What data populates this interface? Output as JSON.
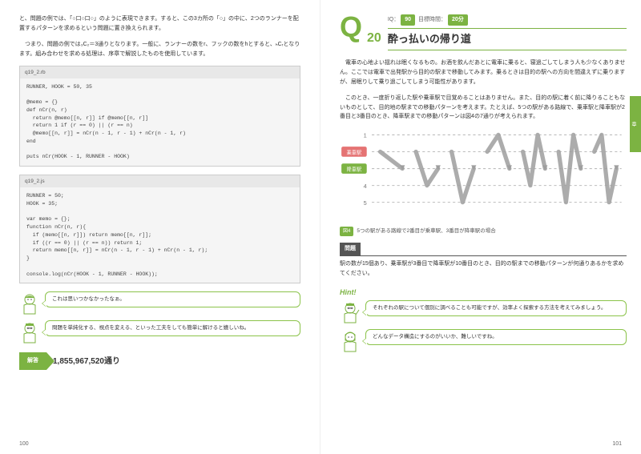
{
  "left": {
    "para1": "と、問題の例では、「○口○口○」のように表現できます。すると、この3カ所の「○」の中に、2つのランナーを配置するパターンを求めるという問題に置き換えられます。",
    "para2": "　つまり、問題の例では₃C₂＝3通りとなります。一般に、ランナーの数をr、フックの数をhとすると、ₕCᵣとなります。組み合わせを求める処理は、序章で解説したものを使用しています。",
    "code1_name": "q19_2.rb",
    "code1": "RUNNER, HOOK = 50, 35\n\n@memo = {}\ndef nCr(n, r)\n  return @memo[[n, r]] if @memo[[n, r]]\n  return 1 if (r == 0) || (r == n)\n  @memo[[n, r]] = nCr(n - 1, r - 1) + nCr(n - 1, r)\nend\n\nputs nCr(HOOK - 1, RUNNER - HOOK)",
    "code2_name": "q19_2.js",
    "code2": "RUNNER = 50;\nHOOK = 35;\n\nvar memo = {};\nfunction nCr(n, r){\n  if (memo[[n, r]]) return memo[[n, r]];\n  if ((r == 0) || (r == n)) return 1;\n  return memo[[n, r]] = nCr(n - 1, r - 1) + nCr(n - 1, r);\n}\n\nconsole.log(nCr(HOOK - 1, RUNNER - HOOK));",
    "bubble1": "これは思いつかなかったなぁ。",
    "bubble2": "問題を単純化する、視点を変える、といった工夫をしても簡単に解けると嬉しいね。",
    "answer_label": "解答",
    "answer": "1,855,967,520通り",
    "pagenum": "100"
  },
  "right": {
    "q_letter": "Q",
    "q_num": "20",
    "iq_label": "IQ：",
    "iq_val": "90",
    "time_label": "目標時間：",
    "time_val": "20分",
    "title": "酔っ払いの帰り道",
    "para1": "　電車の心地よい揺れは眠くなるもの。お酒を飲んだあとに電車に乗ると、寝過ごしてしまう人も少なくありません。ここでは電車で出発駅から目的の駅まで移動してみます。乗るときは目的の駅への方向を間違えずに乗りますが、居眠りして乗り過ごしてしまう可能性があります。",
    "para2": "　このとき、一度折り返した駅や乗車駅で目覚めることはありません。また、目的の駅に着く前に降りることもないものとして、目的地の駅までの移動パターンを考えます。たとえば、5つの駅がある路線で、乗車駅と降車駅が2番目と3番目のとき、降車駅までの移動パターンは図4の7通りが考えられます。",
    "fig_badge": "図4",
    "fig_caption": "5つの駅がある路線で2番目が乗車駅、3番目が降車駅の場合",
    "station_board": "乗車駅",
    "station_alight": "降車駅",
    "problem_label": "問題",
    "problem_body": "駅の数が15個あり、乗車駅が3番目で降車駅が10番目のとき、目的の駅までの移動パターンが何通りあるかを求めてください。",
    "hint_label": "Hint!",
    "hint1": "それぞれの駅について個別に調べることも可能ですが、効率よく探索する方法を考えてみましょう。",
    "hint2": "どんなデータ構造にするのがいいか、難しいですね。",
    "pagenum": "101",
    "tab_chap_label": "第",
    "tab_chap_num": "2",
    "tab_chap_suffix": "章",
    "tab_section": "初級編",
    "diagram": {
      "rows": 5,
      "board_row": 2,
      "alight_row": 3,
      "row_color_board": "#e57373",
      "row_color_alight": "#7cb342",
      "line_color": "#bdbdbd",
      "path_color": "#9e9e9e"
    }
  }
}
